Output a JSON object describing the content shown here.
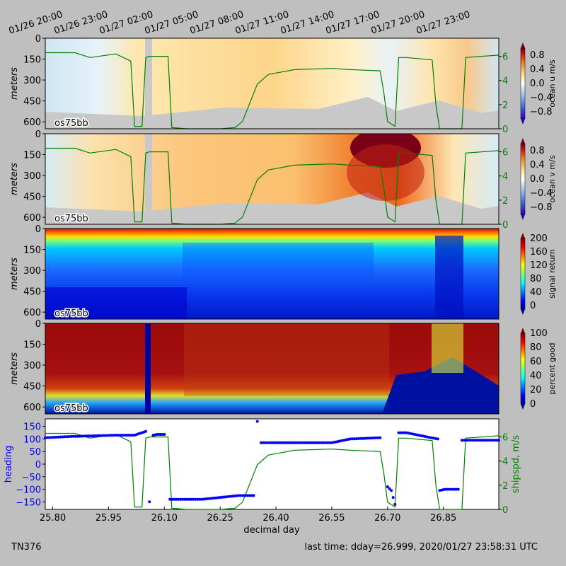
{
  "top_time_ticks": [
    "01/26 20:00",
    "01/26 23:00",
    "01/27 02:00",
    "01/27 05:00",
    "01/27 08:00",
    "01/27 11:00",
    "01/27 14:00",
    "01/27 17:00",
    "01/27 20:00",
    "01/27 23:00"
  ],
  "panels": [
    {
      "id": "u",
      "ylabel": "meters",
      "label": "os75bb",
      "cbar_label": "ocean u m/s",
      "cbar_ticks": [
        "0.8",
        "0.4",
        "0.0",
        "−0.4",
        "−0.8"
      ],
      "right_ticks": [
        "6",
        "4",
        "2",
        "0"
      ]
    },
    {
      "id": "v",
      "ylabel": "meters",
      "label": "os75bb",
      "cbar_label": "ocean v m/s",
      "cbar_ticks": [
        "0.8",
        "0.4",
        "0.0",
        "−0.4",
        "−0.8"
      ],
      "right_ticks": [
        "6",
        "4",
        "2",
        "0"
      ]
    },
    {
      "id": "amp",
      "ylabel": "meters",
      "label": "os75bb",
      "cbar_label": "signal return",
      "cbar_ticks": [
        "200",
        "160",
        "120",
        "80",
        "40",
        "0"
      ]
    },
    {
      "id": "pg",
      "ylabel": "meters",
      "label": "os75bb",
      "cbar_label": "percent good",
      "cbar_ticks": [
        "100",
        "80",
        "60",
        "40",
        "20",
        "0"
      ]
    }
  ],
  "depth_ticks": [
    "0",
    "150",
    "300",
    "450",
    "600"
  ],
  "bottom": {
    "left_label": "heading",
    "right_label": "shipspd, m/s",
    "xlabel": "decimal day",
    "left_ticks": [
      "150",
      "100",
      "50",
      "0",
      "−50",
      "−100",
      "−150"
    ],
    "right_ticks": [
      "6",
      "4",
      "2",
      "0"
    ],
    "x_ticks": [
      "25.80",
      "25.95",
      "26.10",
      "26.25",
      "26.40",
      "26.55",
      "26.70",
      "26.85"
    ]
  },
  "footer": {
    "cruise": "TN376",
    "last_time": "last time: dday=26.999,  2020/01/27 23:58:31 UTC"
  },
  "colors": {
    "heading": "#0000ff",
    "shipspd": "#008000",
    "background": "#bfbfbf",
    "no_data": "#c8c8c8"
  },
  "chart_data": [
    {
      "type": "heatmap",
      "title": "",
      "field": "ocean u",
      "units": "m/s",
      "ylim_depth_m": [
        0,
        650
      ],
      "clim": [
        -1,
        1
      ],
      "colormap": "RdYlBu_r",
      "overlay_series": "ship speed (m/s)"
    },
    {
      "type": "heatmap",
      "title": "",
      "field": "ocean v",
      "units": "m/s",
      "ylim_depth_m": [
        0,
        650
      ],
      "clim": [
        -1,
        1
      ],
      "colormap": "RdYlBu_r",
      "notes": "strong positive v near 26.60-26.75 in upper 300 m"
    },
    {
      "type": "heatmap",
      "title": "",
      "field": "signal return",
      "clim": [
        0,
        210
      ],
      "ylim_depth_m": [
        0,
        650
      ],
      "colormap": "jet"
    },
    {
      "type": "heatmap",
      "title": "",
      "field": "percent good",
      "clim": [
        0,
        100
      ],
      "ylim_depth_m": [
        0,
        650
      ],
      "colormap": "jet"
    },
    {
      "type": "line",
      "title": "",
      "xlim": [
        25.78,
        26.999
      ],
      "xlabel": "decimal day",
      "series": [
        {
          "name": "heading",
          "axis": "left",
          "ylim": [
            -180,
            180
          ],
          "x": [
            25.78,
            25.85,
            25.9,
            25.97,
            26.02,
            26.03,
            26.05,
            26.06,
            26.07,
            26.08,
            26.1,
            26.115,
            26.2,
            26.3,
            26.34,
            26.35,
            26.36,
            26.45,
            26.55,
            26.6,
            26.68,
            26.7,
            26.71,
            26.72,
            26.73,
            26.75,
            26.8,
            26.835,
            26.84,
            26.855,
            26.89,
            26.9,
            26.999
          ],
          "y": [
            105,
            110,
            112,
            115,
            115,
            120,
            130,
            -150,
            115,
            118,
            118,
            -140,
            -140,
            -125,
            -125,
            170,
            85,
            85,
            85,
            100,
            105,
            -90,
            -105,
            -160,
            125,
            125,
            110,
            100,
            -105,
            -100,
            -100,
            95,
            95
          ]
        },
        {
          "name": "shipspd",
          "axis": "right",
          "ylim": [
            0,
            7.5
          ],
          "x": [
            25.78,
            25.86,
            25.9,
            25.97,
            26.01,
            26.02,
            26.04,
            26.05,
            26.06,
            26.11,
            26.12,
            26.16,
            26.25,
            26.29,
            26.31,
            26.35,
            26.38,
            26.45,
            26.55,
            26.6,
            26.68,
            26.69,
            26.7,
            26.72,
            26.73,
            26.75,
            26.82,
            26.83,
            26.84,
            26.9,
            26.91,
            26.999
          ],
          "y": [
            6.3,
            6.3,
            5.9,
            6.2,
            5.6,
            0.2,
            0.2,
            5.9,
            6.0,
            6.0,
            0.1,
            0.0,
            0.0,
            0.1,
            0.6,
            3.7,
            4.5,
            4.9,
            5.0,
            4.9,
            4.8,
            3.0,
            0.6,
            0.2,
            5.9,
            5.9,
            5.7,
            2.0,
            0.0,
            0.0,
            5.9,
            6.1
          ]
        }
      ]
    }
  ]
}
